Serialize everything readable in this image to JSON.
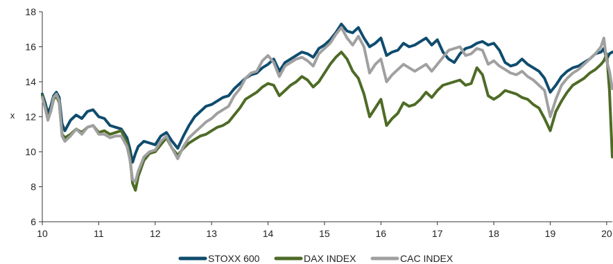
{
  "chart_data": {
    "type": "line",
    "title": "",
    "xlabel": "",
    "ylabel": "x",
    "xlim": [
      10,
      20.1
    ],
    "ylim": [
      6,
      18
    ],
    "x_ticks": [
      "10",
      "11",
      "12",
      "13",
      "14",
      "15",
      "16",
      "17",
      "18",
      "19",
      "20"
    ],
    "y_ticks": [
      "6",
      "8",
      "10",
      "12",
      "14",
      "16",
      "18"
    ],
    "grid": false,
    "legend_position": "bottom",
    "series": [
      {
        "name": "STOXX 600",
        "color": "#0f4c6e",
        "x": [
          10.0,
          10.05,
          10.1,
          10.15,
          10.2,
          10.25,
          10.3,
          10.35,
          10.4,
          10.5,
          10.6,
          10.7,
          10.8,
          10.9,
          11.0,
          11.1,
          11.2,
          11.3,
          11.4,
          11.5,
          11.55,
          11.6,
          11.65,
          11.7,
          11.8,
          11.9,
          12.0,
          12.1,
          12.2,
          12.3,
          12.4,
          12.5,
          12.6,
          12.7,
          12.8,
          12.9,
          13.0,
          13.1,
          13.2,
          13.3,
          13.4,
          13.5,
          13.6,
          13.7,
          13.8,
          13.9,
          14.0,
          14.1,
          14.2,
          14.3,
          14.4,
          14.5,
          14.6,
          14.7,
          14.8,
          14.9,
          15.0,
          15.1,
          15.2,
          15.3,
          15.4,
          15.5,
          15.6,
          15.7,
          15.8,
          15.9,
          16.0,
          16.1,
          16.2,
          16.3,
          16.4,
          16.5,
          16.6,
          16.7,
          16.8,
          16.9,
          17.0,
          17.1,
          17.2,
          17.3,
          17.4,
          17.5,
          17.6,
          17.7,
          17.8,
          17.9,
          18.0,
          18.1,
          18.2,
          18.3,
          18.4,
          18.5,
          18.6,
          18.7,
          18.8,
          18.9,
          19.0,
          19.1,
          19.2,
          19.3,
          19.4,
          19.5,
          19.6,
          19.7,
          19.8,
          19.9,
          19.95,
          20.0,
          20.05,
          20.1
        ],
        "values": [
          13.3,
          12.8,
          12.2,
          12.6,
          13.2,
          13.4,
          13.1,
          11.6,
          11.2,
          11.8,
          12.1,
          11.9,
          12.3,
          12.4,
          12.0,
          11.9,
          11.5,
          11.4,
          11.3,
          10.8,
          10.2,
          9.4,
          9.9,
          10.3,
          10.6,
          10.5,
          10.4,
          10.9,
          11.1,
          10.6,
          10.2,
          10.9,
          11.5,
          12.0,
          12.3,
          12.6,
          12.7,
          12.9,
          13.1,
          13.2,
          13.6,
          13.9,
          14.2,
          14.4,
          14.5,
          14.8,
          15.0,
          15.3,
          14.6,
          15.1,
          15.3,
          15.5,
          15.7,
          15.6,
          15.4,
          15.9,
          16.1,
          16.4,
          16.8,
          17.3,
          16.9,
          16.8,
          17.1,
          16.5,
          16.0,
          16.2,
          16.5,
          15.5,
          15.7,
          15.8,
          16.2,
          16.0,
          16.1,
          16.3,
          16.5,
          16.1,
          16.4,
          15.7,
          15.3,
          15.1,
          15.6,
          15.9,
          16.0,
          16.2,
          16.3,
          16.1,
          16.2,
          15.8,
          15.1,
          14.9,
          15.0,
          15.3,
          15.0,
          14.8,
          14.6,
          14.2,
          13.4,
          13.8,
          14.3,
          14.6,
          14.8,
          14.9,
          15.1,
          15.3,
          15.6,
          15.7,
          15.9,
          15.3,
          15.6,
          15.7
        ]
      },
      {
        "name": "DAX INDEX",
        "color": "#4e6b26",
        "x": [
          10.0,
          10.05,
          10.1,
          10.15,
          10.2,
          10.25,
          10.3,
          10.35,
          10.4,
          10.5,
          10.6,
          10.7,
          10.8,
          10.9,
          11.0,
          11.1,
          11.2,
          11.3,
          11.4,
          11.5,
          11.55,
          11.6,
          11.65,
          11.7,
          11.8,
          11.9,
          12.0,
          12.1,
          12.2,
          12.3,
          12.4,
          12.5,
          12.6,
          12.7,
          12.8,
          12.9,
          13.0,
          13.1,
          13.2,
          13.3,
          13.4,
          13.5,
          13.6,
          13.7,
          13.8,
          13.9,
          14.0,
          14.1,
          14.2,
          14.3,
          14.4,
          14.5,
          14.6,
          14.7,
          14.8,
          14.9,
          15.0,
          15.1,
          15.2,
          15.3,
          15.4,
          15.5,
          15.6,
          15.7,
          15.8,
          15.9,
          16.0,
          16.1,
          16.2,
          16.3,
          16.4,
          16.5,
          16.6,
          16.7,
          16.8,
          16.9,
          17.0,
          17.1,
          17.2,
          17.3,
          17.4,
          17.5,
          17.6,
          17.7,
          17.8,
          17.9,
          18.0,
          18.1,
          18.2,
          18.3,
          18.4,
          18.5,
          18.6,
          18.7,
          18.8,
          18.9,
          19.0,
          19.1,
          19.2,
          19.3,
          19.4,
          19.5,
          19.6,
          19.7,
          19.8,
          19.9,
          19.95,
          20.0,
          20.05,
          20.1
        ],
        "values": [
          13.2,
          12.6,
          11.9,
          12.3,
          13.0,
          13.2,
          12.8,
          11.0,
          10.8,
          11.0,
          11.3,
          11.1,
          11.4,
          11.5,
          11.1,
          11.2,
          11.0,
          11.1,
          11.2,
          10.5,
          9.8,
          8.2,
          7.8,
          8.6,
          9.5,
          9.9,
          10.0,
          10.4,
          10.8,
          10.2,
          9.8,
          10.2,
          10.5,
          10.7,
          10.9,
          11.0,
          11.2,
          11.4,
          11.5,
          11.7,
          12.1,
          12.5,
          13.0,
          13.2,
          13.4,
          13.7,
          13.9,
          13.8,
          13.2,
          13.5,
          13.8,
          14.0,
          14.3,
          14.1,
          13.7,
          14.0,
          14.5,
          15.0,
          15.4,
          15.7,
          15.3,
          14.6,
          14.2,
          13.3,
          12.0,
          12.5,
          13.0,
          11.5,
          11.9,
          12.2,
          12.8,
          12.6,
          12.7,
          13.0,
          13.4,
          13.1,
          13.5,
          13.8,
          13.9,
          14.0,
          14.1,
          13.8,
          13.9,
          14.8,
          14.4,
          13.2,
          13.0,
          13.2,
          13.5,
          13.4,
          13.3,
          13.1,
          13.0,
          12.7,
          12.5,
          11.9,
          11.2,
          12.3,
          12.9,
          13.4,
          13.8,
          14.0,
          14.2,
          14.5,
          14.7,
          15.0,
          15.2,
          15.6,
          13.5,
          9.7
        ]
      },
      {
        "name": "CAC INDEX",
        "color": "#a0a0a0",
        "x": [
          10.0,
          10.05,
          10.1,
          10.15,
          10.2,
          10.25,
          10.3,
          10.35,
          10.4,
          10.5,
          10.6,
          10.7,
          10.8,
          10.9,
          11.0,
          11.1,
          11.2,
          11.3,
          11.4,
          11.5,
          11.55,
          11.6,
          11.65,
          11.7,
          11.8,
          11.9,
          12.0,
          12.1,
          12.2,
          12.3,
          12.4,
          12.5,
          12.6,
          12.7,
          12.8,
          12.9,
          13.0,
          13.1,
          13.2,
          13.3,
          13.4,
          13.5,
          13.6,
          13.7,
          13.8,
          13.9,
          14.0,
          14.1,
          14.2,
          14.3,
          14.4,
          14.5,
          14.6,
          14.7,
          14.8,
          14.9,
          15.0,
          15.1,
          15.2,
          15.3,
          15.4,
          15.5,
          15.6,
          15.7,
          15.8,
          15.9,
          16.0,
          16.1,
          16.2,
          16.3,
          16.4,
          16.5,
          16.6,
          16.7,
          16.8,
          16.9,
          17.0,
          17.1,
          17.2,
          17.3,
          17.4,
          17.5,
          17.6,
          17.7,
          17.8,
          17.9,
          18.0,
          18.1,
          18.2,
          18.3,
          18.4,
          18.5,
          18.6,
          18.7,
          18.8,
          18.9,
          19.0,
          19.1,
          19.2,
          19.3,
          19.4,
          19.5,
          19.6,
          19.7,
          19.8,
          19.9,
          19.95,
          20.0,
          20.05,
          20.1
        ],
        "values": [
          13.1,
          12.5,
          11.8,
          12.3,
          13.1,
          13.3,
          12.9,
          10.9,
          10.6,
          10.9,
          11.3,
          11.0,
          11.4,
          11.5,
          11.0,
          11.0,
          10.8,
          10.9,
          10.9,
          10.3,
          9.6,
          8.4,
          8.3,
          8.9,
          9.7,
          10.0,
          10.1,
          10.6,
          10.9,
          10.2,
          9.6,
          10.3,
          10.8,
          11.1,
          11.4,
          11.7,
          11.9,
          12.2,
          12.4,
          12.6,
          13.2,
          13.6,
          14.2,
          14.5,
          14.6,
          15.2,
          15.5,
          15.1,
          14.3,
          14.9,
          15.1,
          15.3,
          15.4,
          15.2,
          14.9,
          15.6,
          15.9,
          16.2,
          16.7,
          17.1,
          16.5,
          16.1,
          16.6,
          16.0,
          14.5,
          15.0,
          15.3,
          14.0,
          14.4,
          14.7,
          15.0,
          14.8,
          14.6,
          14.8,
          15.0,
          14.6,
          15.0,
          15.4,
          15.8,
          15.9,
          16.0,
          15.5,
          15.6,
          15.9,
          15.8,
          15.0,
          15.2,
          14.9,
          14.7,
          14.5,
          14.4,
          14.6,
          14.3,
          14.1,
          13.8,
          13.5,
          12.0,
          13.0,
          13.8,
          14.2,
          14.5,
          14.7,
          15.0,
          15.3,
          15.6,
          16.0,
          16.5,
          15.2,
          14.6,
          13.6
        ]
      }
    ]
  }
}
